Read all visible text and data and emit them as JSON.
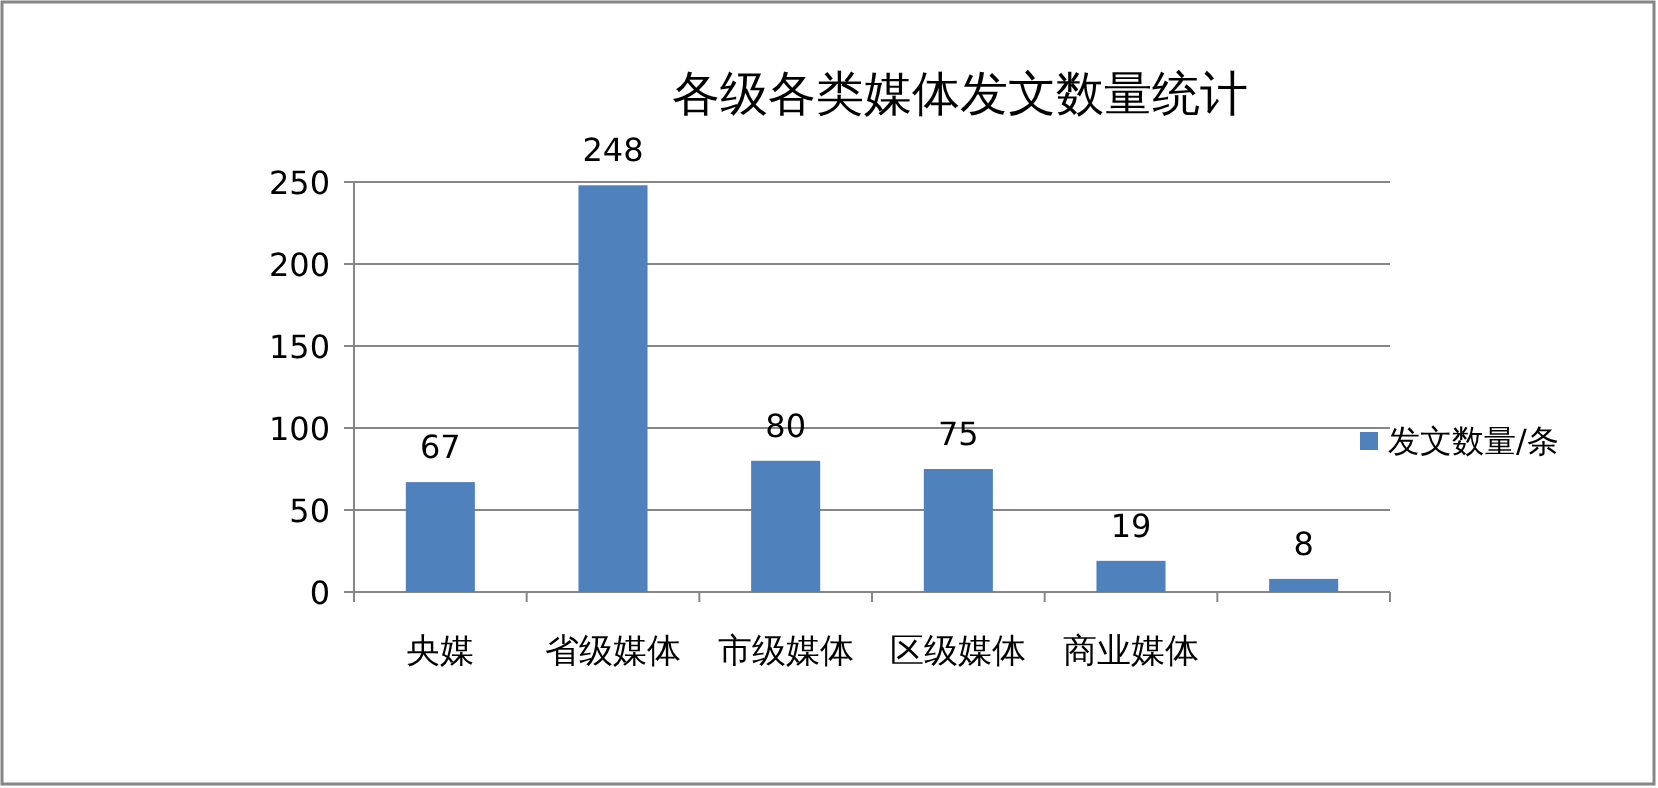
{
  "chart_data": {
    "type": "bar",
    "title": "各级各类媒体发文数量统计",
    "categories": [
      "央媒",
      "省级媒体",
      "市级媒体",
      "区级媒体",
      "商业媒体",
      null
    ],
    "series": [
      {
        "name": "发文数量/条",
        "color": "#4f81bd",
        "values": [
          67,
          248,
          80,
          75,
          19,
          8
        ]
      }
    ],
    "ylim": [
      0,
      250
    ],
    "yticks": [
      0,
      50,
      100,
      150,
      200,
      250
    ],
    "grid": "y",
    "legend": "right",
    "data_labels": true
  }
}
